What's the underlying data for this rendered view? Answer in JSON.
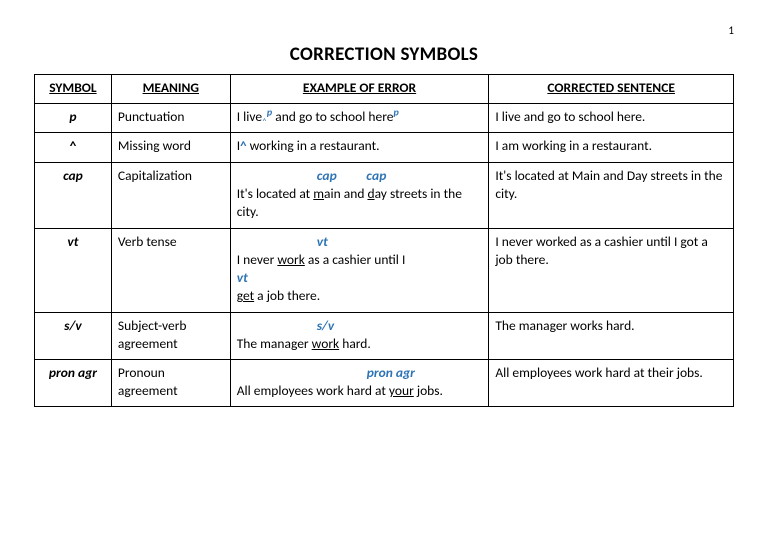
{
  "page_number": "1",
  "title": "CORRECTION SYMBOLS",
  "headers": {
    "symbol": "SYMBOL",
    "meaning": "MEANING",
    "example": "EXAMPLE OF ERROR",
    "corrected": "CORRECTED SENTENCE"
  },
  "rows": {
    "r0": {
      "symbol": "p",
      "meaning": "Punctuation",
      "ex_t1": "I live",
      "ex_m1": "p",
      "ex_t2": "and go to school here",
      "ex_m2": "p",
      "corrected": "I live and go to school here."
    },
    "r1": {
      "symbol": "^",
      "meaning": "Missing word",
      "ex_t1": "I",
      "ex_m1": "^",
      "ex_t2": " working in a restaurant.",
      "corrected": "I am working in a restaurant."
    },
    "r2": {
      "symbol": "cap",
      "meaning": "Capitalization",
      "ann_m1": "cap",
      "ann_sp": "         ",
      "ann_m2": "cap",
      "ex_t1": "It's located at ",
      "ex_u1": "m",
      "ex_t2": "ain and ",
      "ex_u2": "d",
      "ex_t3": "ay streets in the city.",
      "corrected": "It's located at Main and Day streets in the city."
    },
    "r3": {
      "symbol": "vt",
      "meaning": "Verb tense",
      "ann_m1": "vt",
      "ex_t1": "I never ",
      "ex_u1": "work",
      "ex_t2": " as a cashier until I",
      "ann_m2": "vt",
      "ex_u2": "get",
      "ex_t3": " a job there.",
      "corrected": "I never worked as a cashier until I got a job there."
    },
    "r4": {
      "symbol": "s/v",
      "meaning": "Subject-verb agreement",
      "ann_m1": "s/v",
      "ex_t1": "The manager ",
      "ex_u1": "work",
      "ex_t2": " hard.",
      "corrected": "The manager works hard."
    },
    "r5": {
      "symbol": "pron agr",
      "meaning": "Pronoun agreement",
      "ann_m1": "pron agr",
      "ex_t1": "All employees work hard at ",
      "ex_u1": "your",
      "ex_t2": " jobs.",
      "corrected": "All employees work hard at their jobs."
    }
  },
  "style": {
    "mark_color": "#2e74b5",
    "border_color": "#000000",
    "background_color": "#ffffff",
    "font_family": "Calibri",
    "title_fontsize": 19,
    "cell_fontsize": 13.5
  }
}
